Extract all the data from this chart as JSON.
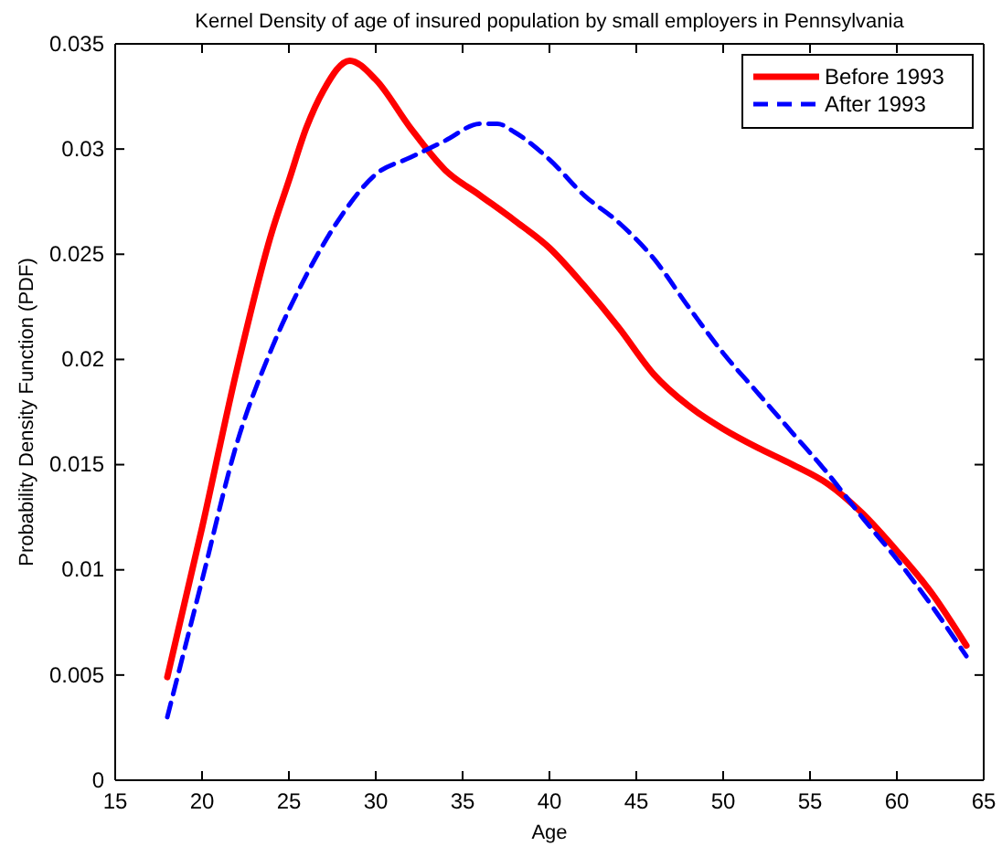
{
  "chart_data": {
    "type": "line",
    "title": "Kernel Density of age of insured population by small employers in Pennsylvania",
    "xlabel": "Age",
    "ylabel": "Probability Density Function (PDF)",
    "xlim": [
      15,
      65
    ],
    "xticks": [
      15,
      20,
      25,
      30,
      35,
      40,
      45,
      50,
      55,
      60,
      65
    ],
    "ylim": [
      0,
      0.035
    ],
    "yticks": [
      0,
      0.005,
      0.01,
      0.015,
      0.02,
      0.025,
      0.03,
      0.035
    ],
    "legend": "top right",
    "grid": false,
    "marker": "none",
    "series": [
      {
        "name": "Before 1993",
        "color": "#ff0000",
        "line_style": "solid",
        "x": [
          18,
          20,
          22,
          24,
          25,
          26,
          27,
          28.5,
          30,
          32,
          34,
          36,
          38,
          40,
          42,
          44,
          46,
          48,
          50,
          52,
          54,
          56,
          58,
          60,
          62,
          64
        ],
        "values": [
          0.0049,
          0.012,
          0.0195,
          0.026,
          0.0285,
          0.031,
          0.0328,
          0.0342,
          0.0333,
          0.031,
          0.029,
          0.0278,
          0.0266,
          0.0253,
          0.0235,
          0.0215,
          0.0193,
          0.0178,
          0.0167,
          0.0158,
          0.015,
          0.0141,
          0.0127,
          0.0109,
          0.0089,
          0.0064
        ]
      },
      {
        "name": "After 1993",
        "color": "#0000ff",
        "line_style": "dashed",
        "x": [
          18,
          20,
          22,
          24,
          26,
          28,
          30,
          32,
          34,
          36,
          37,
          38,
          40,
          42,
          44,
          46,
          48,
          50,
          52,
          54,
          56,
          58,
          60,
          62,
          64
        ],
        "values": [
          0.003,
          0.0095,
          0.016,
          0.0205,
          0.024,
          0.0268,
          0.0288,
          0.0296,
          0.0304,
          0.0312,
          0.0312,
          0.0308,
          0.0295,
          0.0278,
          0.0265,
          0.0248,
          0.0225,
          0.0203,
          0.0184,
          0.0165,
          0.0146,
          0.0125,
          0.0105,
          0.0083,
          0.0059
        ]
      }
    ]
  }
}
